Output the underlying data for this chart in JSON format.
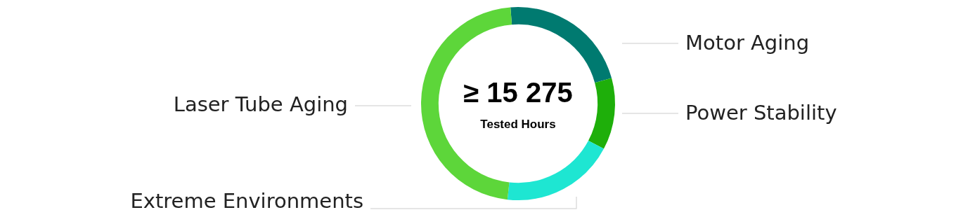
{
  "chart_data": {
    "type": "donut",
    "categories": [
      "Motor Aging",
      "Power Stability",
      "Extreme Environments",
      "Laser Tube Aging"
    ],
    "values": [
      22,
      12,
      19,
      47
    ],
    "colors": [
      "#007a70",
      "#1eaf0a",
      "#1ee6d2",
      "#5dd63a"
    ],
    "legend": false,
    "annotations": [
      "≥ 15 275",
      "Tested Hours"
    ]
  }
}
